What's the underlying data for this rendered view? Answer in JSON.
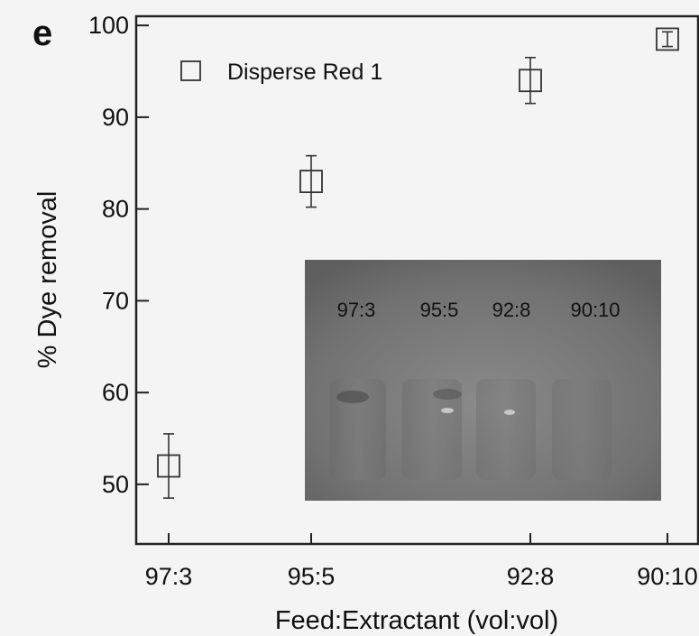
{
  "panel_label": "e",
  "inset": {
    "ratio_labels": [
      "97:3",
      "95:5",
      "92:8",
      "90:10"
    ]
  },
  "chart_data": {
    "type": "scatter",
    "xlabel": "Feed:Extractant (vol:vol)",
    "ylabel": "% Dye removal",
    "categories": [
      "97:3",
      "95:5",
      "92:8",
      "90:10"
    ],
    "yticks": [
      50,
      60,
      70,
      80,
      90,
      100
    ],
    "ylim": [
      43.5,
      101
    ],
    "legend_position": "top-left",
    "grid": false,
    "series": [
      {
        "name": "Disperse Red 1",
        "marker": "open-square",
        "color": "#333333",
        "points": [
          {
            "x": "97:3",
            "y": 52,
            "err": 3.5
          },
          {
            "x": "95:5",
            "y": 83,
            "err": 2.8
          },
          {
            "x": "92:8",
            "y": 94,
            "err": 2.5
          },
          {
            "x": "90:10",
            "y": 98.5,
            "err": 0.8
          }
        ]
      }
    ]
  }
}
